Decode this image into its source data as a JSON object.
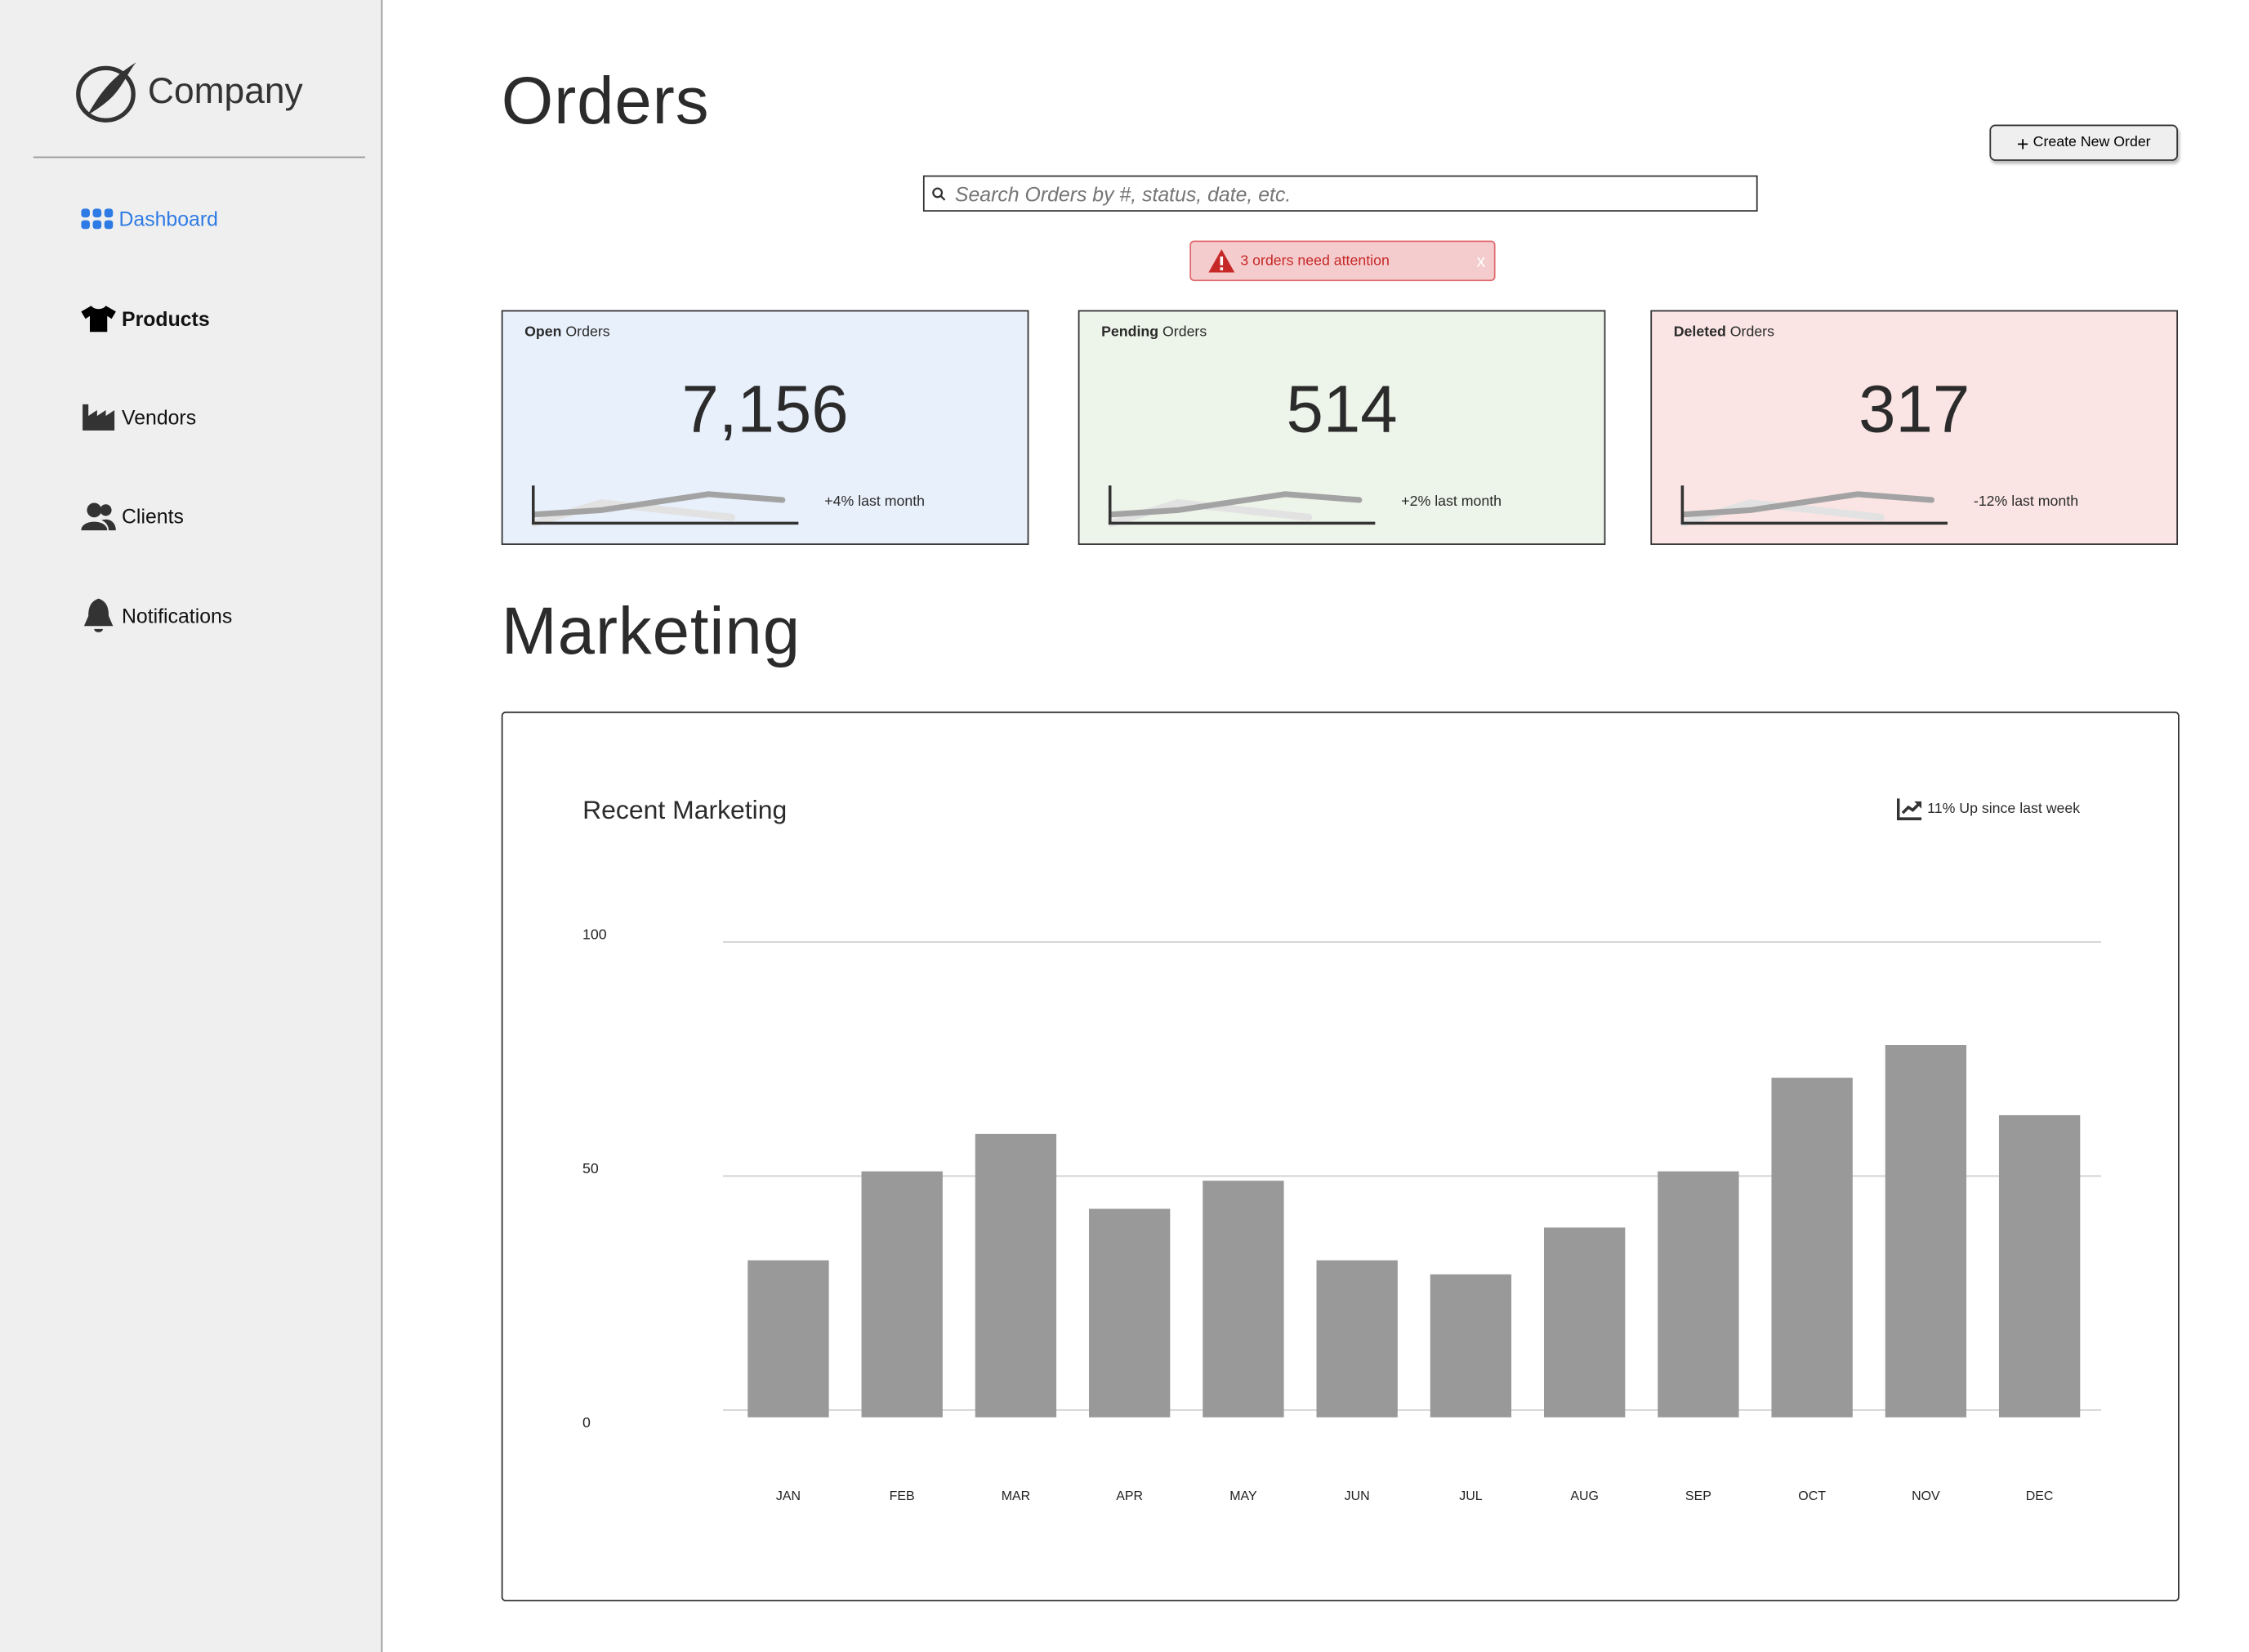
{
  "sidebar": {
    "brand": "Company",
    "items": [
      {
        "label": "Dashboard",
        "icon": "dashboard-grid-icon",
        "active": true
      },
      {
        "label": "Products",
        "icon": "tshirt-icon"
      },
      {
        "label": "Vendors",
        "icon": "factory-icon"
      },
      {
        "label": "Clients",
        "icon": "users-icon"
      },
      {
        "label": "Notifications",
        "icon": "bell-icon"
      }
    ]
  },
  "orders": {
    "title": "Orders",
    "create_button": "Create New Order",
    "search_placeholder": "Search Orders by #, status, date, etc.",
    "alert": {
      "text": "3 orders need attention",
      "close": "x"
    },
    "cards": [
      {
        "label_bold": "Open",
        "label_rest": " Orders",
        "value": "7,156",
        "delta": "+4% last month",
        "bg": "#e8f0fc"
      },
      {
        "label_bold": "Pending",
        "label_rest": " Orders",
        "value": "514",
        "delta": "+2% last month",
        "bg": "#edf4e9"
      },
      {
        "label_bold": "Deleted",
        "label_rest": " Orders",
        "value": "317",
        "delta": "-12% last month",
        "bg": "#fae4e4"
      }
    ]
  },
  "marketing": {
    "title": "Marketing",
    "chart_title": "Recent Marketing",
    "chart_note": "11% Up since last week"
  },
  "chart_data": {
    "type": "bar",
    "title": "Recent Marketing",
    "categories": [
      "JAN",
      "FEB",
      "MAR",
      "APR",
      "MAY",
      "JUN",
      "JUL",
      "AUG",
      "SEP",
      "OCT",
      "NOV",
      "DEC"
    ],
    "values": [
      32,
      51,
      59,
      43,
      49,
      32,
      29,
      39,
      51,
      71,
      78,
      63
    ],
    "yticks": [
      "0",
      "50",
      "100"
    ],
    "ylim": [
      0,
      100
    ],
    "grid": true,
    "bar_color": "#999999"
  }
}
